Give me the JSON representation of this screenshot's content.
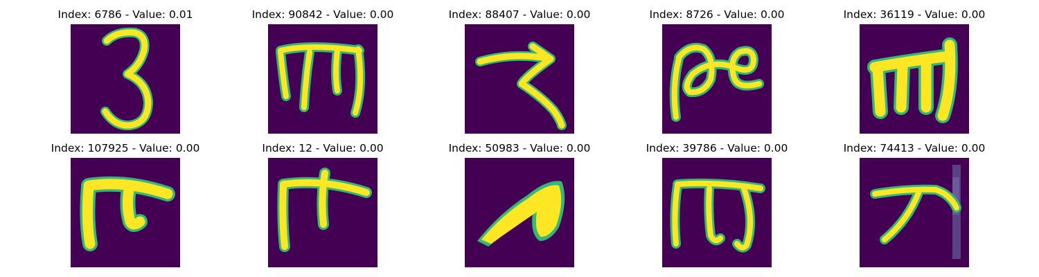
{
  "colors": {
    "background": "#440154",
    "stroke": "#fde725",
    "edge": "#35b779",
    "faint": "#5b4e8c"
  },
  "panels": [
    {
      "title": "Index: 6786 - Value: 0.01",
      "glyph": "digit-3"
    },
    {
      "title": "Index: 90842 - Value: 0.00",
      "glyph": "script-m-looped"
    },
    {
      "title": "Index: 88407 - Value: 0.00",
      "glyph": "script-z"
    },
    {
      "title": "Index: 8726 - Value: 0.00",
      "glyph": "infinity-loop"
    },
    {
      "title": "Index: 36119 - Value: 0.00",
      "glyph": "bold-m"
    },
    {
      "title": "Index: 107925 - Value: 0.00",
      "glyph": "hook-pi"
    },
    {
      "title": "Index: 12 - Value: 0.00",
      "glyph": "cross-pi"
    },
    {
      "title": "Index: 50983 - Value: 0.00",
      "glyph": "filled-loop"
    },
    {
      "title": "Index: 39786 - Value: 0.00",
      "glyph": "m-hook"
    },
    {
      "title": "Index: 74413 - Value: 0.00",
      "glyph": "arrow-stroke"
    }
  ]
}
